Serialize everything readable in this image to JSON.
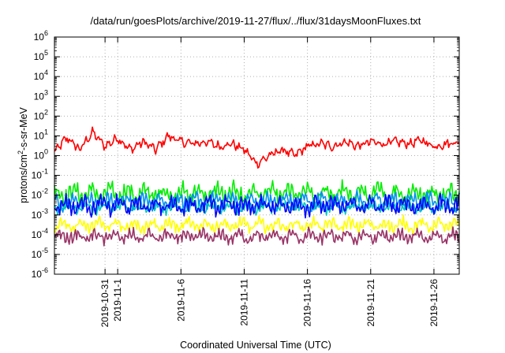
{
  "chart_data": {
    "type": "line",
    "title": "/data/run/goesPlots/archive/2019-11-27/flux/../flux/31daysMoonFluxes.txt",
    "xlabel": "Coordinated Universal Time (UTC)",
    "ylabel": "protons/cm2-s-sr-MeV",
    "ylabel_parts": {
      "base": "protons/cm",
      "sup": "2",
      "rest": "-s-sr-MeV"
    },
    "yscale": "log",
    "ylim": [
      1e-06,
      1000000.0
    ],
    "ytick_exponents": [
      -6,
      -5,
      -4,
      -3,
      -2,
      -1,
      0,
      1,
      2,
      3,
      4,
      5,
      6
    ],
    "ytick_labels": [
      {
        "base": "10",
        "exp": "-6"
      },
      {
        "base": "10",
        "exp": "-5"
      },
      {
        "base": "10",
        "exp": "-4"
      },
      {
        "base": "10",
        "exp": "-3"
      },
      {
        "base": "10",
        "exp": "-2"
      },
      {
        "base": "10",
        "exp": "-1"
      },
      {
        "base": "10",
        "exp": "0"
      },
      {
        "base": "10",
        "exp": "1"
      },
      {
        "base": "10",
        "exp": "2"
      },
      {
        "base": "10",
        "exp": "3"
      },
      {
        "base": "10",
        "exp": "4"
      },
      {
        "base": "10",
        "exp": "5"
      },
      {
        "base": "10",
        "exp": "6"
      }
    ],
    "xlim": [
      "2019-10-27",
      "2019-11-28"
    ],
    "xticks": [
      "2019-10-31",
      "2019-11-1",
      "2019-11-6",
      "2019-11-11",
      "2019-11-16",
      "2019-11-21",
      "2019-11-26"
    ],
    "grid": true,
    "series": [
      {
        "color": "#ff0000",
        "baseline": 4.0,
        "variation_decades": 0.5,
        "samples": [
          [
            "2019-10-27",
            1.5
          ],
          [
            "2019-10-28",
            8
          ],
          [
            "2019-10-29",
            2
          ],
          [
            "2019-10-30",
            15
          ],
          [
            "2019-10-31",
            3
          ],
          [
            "2019-11-1",
            8
          ],
          [
            "2019-11-2",
            2
          ],
          [
            "2019-11-3",
            5
          ],
          [
            "2019-11-4",
            2
          ],
          [
            "2019-11-5",
            10
          ],
          [
            "2019-11-6",
            5
          ],
          [
            "2019-11-7",
            4
          ],
          [
            "2019-11-8",
            5
          ],
          [
            "2019-11-9",
            3
          ],
          [
            "2019-11-10",
            4
          ],
          [
            "2019-11-11",
            2
          ],
          [
            "2019-11-12",
            0.4
          ],
          [
            "2019-11-13",
            1
          ],
          [
            "2019-11-14",
            2
          ],
          [
            "2019-11-15",
            1
          ],
          [
            "2019-11-16",
            3
          ],
          [
            "2019-11-17",
            4
          ],
          [
            "2019-11-18",
            3
          ],
          [
            "2019-11-19",
            5
          ],
          [
            "2019-11-20",
            3
          ],
          [
            "2019-11-21",
            5
          ],
          [
            "2019-11-22",
            4
          ],
          [
            "2019-11-23",
            5
          ],
          [
            "2019-11-24",
            4
          ],
          [
            "2019-11-25",
            6
          ],
          [
            "2019-11-26",
            3
          ],
          [
            "2019-11-27",
            4
          ],
          [
            "2019-11-28",
            5
          ]
        ]
      },
      {
        "color": "#00ee00",
        "baseline": 0.012,
        "variation_decades": 0.5
      },
      {
        "color": "#0090f0",
        "baseline": 0.005,
        "variation_decades": 0.4
      },
      {
        "color": "#00c8c0",
        "baseline": 0.0025,
        "variation_decades": 0.3
      },
      {
        "color": "#0000ff",
        "baseline": 0.003,
        "variation_decades": 0.45
      },
      {
        "color": "#ffff00",
        "baseline": 0.0003,
        "variation_decades": 0.35
      },
      {
        "color": "#993366",
        "baseline": 8e-05,
        "variation_decades": 0.35
      }
    ]
  }
}
